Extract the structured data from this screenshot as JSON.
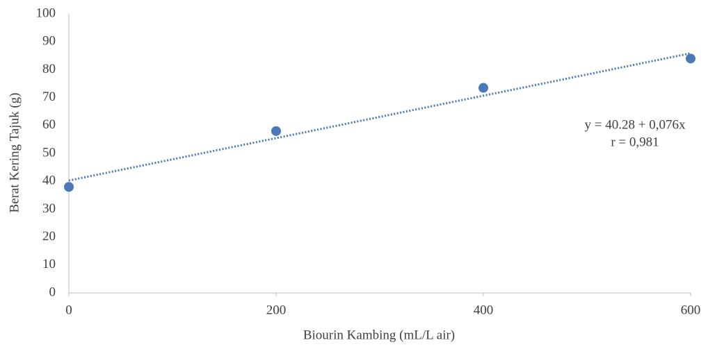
{
  "chart_data": {
    "type": "scatter",
    "x_label": "Biourin Kambing (mL/L air)",
    "y_label": "Berat Kering Tajuk (g)",
    "series": [
      {
        "x": [
          0,
          200,
          400,
          600
        ],
        "values": [
          38,
          58,
          73.5,
          84
        ],
        "color": "#4a78b8"
      }
    ],
    "trendline": {
      "intercept": 40.28,
      "slope": 0.076,
      "color": "#4a78b8"
    },
    "annotations": [
      "y = 40.28 + 0,076x",
      "r = 0,981"
    ],
    "xlim": [
      0,
      600
    ],
    "xticks": [
      0,
      200,
      400,
      600
    ],
    "ylim": [
      0,
      100
    ],
    "yticks": [
      0,
      10,
      20,
      30,
      40,
      50,
      60,
      70,
      80,
      90,
      100
    ],
    "grid": false
  }
}
